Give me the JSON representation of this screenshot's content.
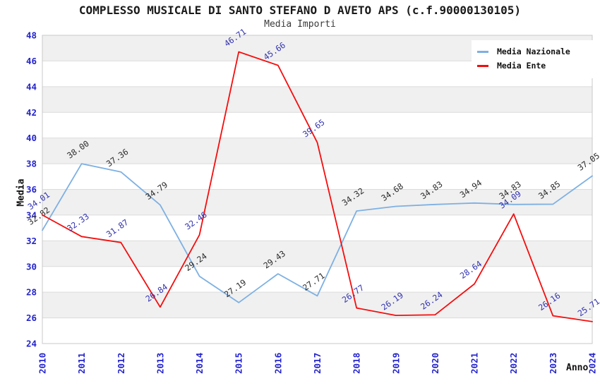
{
  "title": "COMPLESSO MUSICALE DI SANTO STEFANO D AVETO APS (c.f.90000130105)",
  "subtitle": "Media Importi",
  "axes": {
    "y_label": "Media",
    "x_label": "Anno",
    "y_ticks": [
      24,
      26,
      28,
      30,
      32,
      34,
      36,
      38,
      40,
      42,
      44,
      46,
      48
    ],
    "x_ticks": [
      2010,
      2011,
      2012,
      2013,
      2014,
      2015,
      2016,
      2017,
      2018,
      2019,
      2020,
      2021,
      2022,
      2023,
      2024
    ]
  },
  "legend": {
    "position": "top-right",
    "items": [
      {
        "label": "Media Nazionale",
        "color": "#7DB0E3"
      },
      {
        "label": "Media Ente",
        "color": "#F50D0D"
      }
    ]
  },
  "colors": {
    "tick_label": "#2424CC",
    "band_gray": "#F0F0F0",
    "band_white": "#FFFFFF",
    "gridline": "#DBDBDB",
    "plot_border": "#C8C8C8",
    "title_text": "#1A1A1A"
  },
  "chart_data": {
    "type": "line",
    "title": "COMPLESSO MUSICALE DI SANTO STEFANO D AVETO APS (c.f.90000130105)",
    "subtitle": "Media Importi",
    "xlabel": "Anno",
    "ylabel": "Media",
    "x": [
      2010,
      2011,
      2012,
      2013,
      2014,
      2015,
      2016,
      2017,
      2018,
      2019,
      2020,
      2021,
      2022,
      2023,
      2024
    ],
    "xlim": [
      2010,
      2024
    ],
    "ylim": [
      24,
      48
    ],
    "y_step": 2,
    "grid": true,
    "legend_position": "top-right",
    "series": [
      {
        "name": "Media Nazionale",
        "color": "#7DB0E3",
        "label_color": "#2B2B2B",
        "values": [
          32.82,
          38.0,
          37.36,
          34.79,
          29.24,
          27.19,
          29.43,
          27.71,
          34.32,
          34.68,
          34.83,
          34.94,
          34.83,
          34.85,
          37.05
        ]
      },
      {
        "name": "Media Ente",
        "color": "#F50D0D",
        "label_color": "#3232B0",
        "values": [
          34.01,
          32.33,
          31.87,
          26.84,
          32.46,
          46.71,
          45.66,
          39.65,
          26.77,
          26.19,
          26.24,
          28.64,
          34.09,
          26.16,
          25.71
        ]
      }
    ]
  }
}
